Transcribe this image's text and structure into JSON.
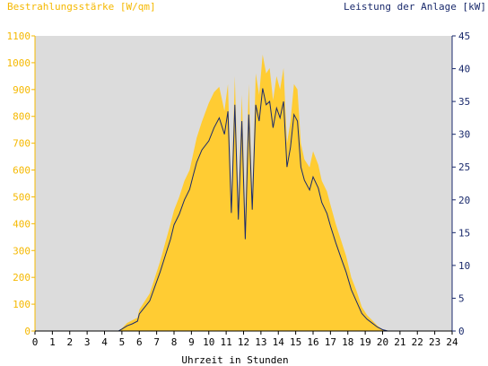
{
  "chart_data": {
    "type": "area",
    "left_title": "Bestrahlungsstärke [W/qm]",
    "right_title": "Leistung der Anlage [kW]",
    "xlabel": "Uhrzeit in Stunden",
    "x_ticks": [
      "0",
      "1",
      "2",
      "3",
      "4",
      "5",
      "6",
      "7",
      "8",
      "9",
      "10",
      "11",
      "12",
      "13",
      "14",
      "15",
      "16",
      "17",
      "18",
      "19",
      "20",
      "21",
      "22",
      "23",
      "24"
    ],
    "xlim": [
      0,
      24
    ],
    "y_left": {
      "ticks": [
        "0",
        "100",
        "200",
        "300",
        "400",
        "500",
        "600",
        "700",
        "800",
        "900",
        "1000",
        "1100"
      ],
      "lim": [
        0,
        1100
      ]
    },
    "y_right": {
      "ticks": [
        "0",
        "5",
        "10",
        "15",
        "20",
        "25",
        "30",
        "35",
        "40",
        "45"
      ],
      "lim": [
        0,
        45
      ]
    },
    "colors": {
      "irradiance": "#ffcc33",
      "power": "#1a2a6c",
      "plot_bg": "#dcdcdc",
      "left_axis_text": "#f5b800",
      "right_axis_text": "#1a2a6c"
    },
    "series": [
      {
        "axis": "left",
        "x": [
          0,
          4.8,
          5.0,
          5.3,
          5.6,
          5.9,
          6.0,
          6.3,
          6.6,
          6.9,
          7.2,
          7.5,
          7.8,
          8.0,
          8.3,
          8.6,
          8.9,
          9.1,
          9.3,
          9.6,
          10.0,
          10.3,
          10.6,
          10.9,
          11.1,
          11.3,
          11.5,
          11.7,
          11.9,
          12.1,
          12.3,
          12.5,
          12.7,
          12.9,
          13.1,
          13.3,
          13.5,
          13.7,
          13.9,
          14.1,
          14.3,
          14.5,
          14.7,
          14.9,
          15.1,
          15.3,
          15.5,
          15.8,
          16.0,
          16.3,
          16.5,
          16.8,
          17.0,
          17.3,
          17.6,
          17.9,
          18.2,
          18.5,
          18.8,
          19.1,
          19.4,
          19.7,
          20.0,
          20.3,
          24
        ],
        "y": [
          0,
          0,
          10,
          30,
          40,
          50,
          80,
          110,
          140,
          200,
          260,
          330,
          400,
          450,
          500,
          560,
          600,
          660,
          720,
          780,
          850,
          890,
          910,
          820,
          920,
          500,
          950,
          480,
          880,
          430,
          920,
          500,
          960,
          880,
          1030,
          960,
          980,
          860,
          950,
          900,
          980,
          700,
          780,
          920,
          900,
          700,
          640,
          610,
          670,
          620,
          560,
          520,
          470,
          400,
          340,
          280,
          200,
          150,
          90,
          60,
          40,
          20,
          5,
          0,
          0
        ]
      },
      {
        "axis": "right",
        "x": [
          0,
          4.8,
          5.0,
          5.3,
          5.6,
          5.9,
          6.0,
          6.3,
          6.6,
          6.9,
          7.2,
          7.5,
          7.8,
          8.0,
          8.3,
          8.6,
          8.9,
          9.1,
          9.3,
          9.6,
          10.0,
          10.3,
          10.6,
          10.9,
          11.1,
          11.3,
          11.5,
          11.7,
          11.9,
          12.1,
          12.3,
          12.5,
          12.7,
          12.9,
          13.1,
          13.3,
          13.5,
          13.7,
          13.9,
          14.1,
          14.3,
          14.5,
          14.7,
          14.9,
          15.1,
          15.3,
          15.5,
          15.8,
          16.0,
          16.3,
          16.5,
          16.8,
          17.0,
          17.3,
          17.6,
          17.9,
          18.2,
          18.5,
          18.8,
          19.1,
          19.4,
          19.7,
          20.0,
          20.3,
          24
        ],
        "y": [
          0,
          0,
          0.3,
          0.8,
          1.1,
          1.5,
          2.6,
          3.6,
          4.6,
          6.8,
          9.0,
          11.5,
          14.0,
          16.2,
          17.8,
          20.0,
          21.6,
          23.7,
          25.7,
          27.6,
          29.0,
          31.0,
          32.5,
          30.0,
          33.5,
          18.0,
          34.5,
          17.0,
          32.0,
          14.0,
          33.0,
          18.5,
          34.5,
          32.0,
          37.0,
          34.5,
          35.0,
          31.0,
          34.0,
          32.5,
          35.0,
          25.0,
          28.0,
          33.0,
          32.0,
          25.0,
          23.0,
          21.5,
          23.5,
          21.8,
          19.6,
          17.9,
          16.0,
          13.5,
          11.2,
          9.0,
          6.3,
          4.5,
          2.7,
          1.8,
          1.2,
          0.6,
          0.2,
          0,
          0
        ]
      }
    ]
  }
}
